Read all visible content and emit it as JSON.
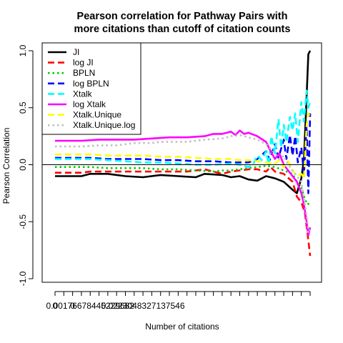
{
  "chart_data": {
    "type": "line",
    "title_lines": [
      "Pearson correlation for Pathway Pairs with",
      "more citations than cutoff of citation counts"
    ],
    "xlabel": "Number of citations",
    "ylabel": "Pearson Correlation",
    "ylim": [
      -1.0,
      1.0
    ],
    "y_ticks": [
      -1.0,
      -0.5,
      0.0,
      0.5,
      1.0
    ],
    "y_tick_labels": [
      "-1.0",
      "-0.5",
      "0.0",
      "0.5",
      "1.0"
    ],
    "x_tick_count": 30,
    "x_tick_labels": [
      {
        "tick": 0,
        "label": "0"
      },
      {
        "tick": 2,
        "label": "0"
      },
      {
        "tick": 4,
        "label": "0.00176678445229682"
      },
      {
        "tick": 10,
        "label": "0.0223048327137546"
      }
    ],
    "reference_line_y": 0,
    "legend_position": "top-left",
    "series": [
      {
        "name": "JI",
        "color": "#000000",
        "dash": "solid",
        "points": [
          [
            0,
            -0.1
          ],
          [
            3,
            -0.1
          ],
          [
            4,
            -0.08
          ],
          [
            6,
            -0.08
          ],
          [
            8,
            -0.1
          ],
          [
            10,
            -0.11
          ],
          [
            12,
            -0.09
          ],
          [
            14,
            -0.1
          ],
          [
            16,
            -0.11
          ],
          [
            17,
            -0.08
          ],
          [
            19,
            -0.09
          ],
          [
            20,
            -0.11
          ],
          [
            21,
            -0.1
          ],
          [
            22,
            -0.13
          ],
          [
            23,
            -0.14
          ],
          [
            24,
            -0.1
          ],
          [
            25,
            -0.12
          ],
          [
            26,
            -0.15
          ],
          [
            27,
            -0.22
          ],
          [
            27.5,
            -0.25
          ],
          [
            28,
            -0.12
          ],
          [
            28.3,
            0.05
          ],
          [
            28.6,
            0.6
          ],
          [
            28.8,
            0.97
          ],
          [
            29,
            1.0
          ]
        ]
      },
      {
        "name": "log JI",
        "color": "#ff0000",
        "dash": "longdash",
        "points": [
          [
            0,
            -0.07
          ],
          [
            3,
            -0.07
          ],
          [
            4,
            -0.06
          ],
          [
            8,
            -0.06
          ],
          [
            12,
            -0.06
          ],
          [
            15,
            -0.06
          ],
          [
            17,
            -0.04
          ],
          [
            18,
            -0.06
          ],
          [
            19,
            -0.08
          ],
          [
            20,
            -0.06
          ],
          [
            21,
            -0.05
          ],
          [
            22,
            -0.04
          ],
          [
            23,
            -0.04
          ],
          [
            24,
            -0.06
          ],
          [
            24.5,
            -0.02
          ],
          [
            25,
            -0.06
          ],
          [
            26,
            -0.08
          ],
          [
            27,
            -0.15
          ],
          [
            27.5,
            -0.28
          ],
          [
            28,
            -0.33
          ],
          [
            28.4,
            -0.42
          ],
          [
            28.7,
            -0.6
          ],
          [
            29,
            -0.8
          ]
        ]
      },
      {
        "name": "BPLN",
        "color": "#00cd00",
        "dash": "dotted",
        "points": [
          [
            0,
            -0.02
          ],
          [
            4,
            -0.02
          ],
          [
            6,
            -0.03
          ],
          [
            8,
            -0.03
          ],
          [
            10,
            -0.03
          ],
          [
            12,
            -0.04
          ],
          [
            14,
            -0.04
          ],
          [
            16,
            -0.05
          ],
          [
            18,
            -0.06
          ],
          [
            19,
            -0.05
          ],
          [
            20,
            -0.05
          ],
          [
            21,
            -0.04
          ],
          [
            22,
            -0.03
          ],
          [
            23,
            -0.02
          ],
          [
            24,
            -0.01
          ],
          [
            25,
            -0.02
          ],
          [
            26,
            -0.05
          ],
          [
            27,
            -0.08
          ],
          [
            27.5,
            -0.15
          ],
          [
            28,
            -0.2
          ],
          [
            28.4,
            -0.3
          ],
          [
            28.7,
            -0.35
          ],
          [
            29,
            -0.33
          ]
        ]
      },
      {
        "name": "log BPLN",
        "color": "#0000ff",
        "dash": "longdash",
        "points": [
          [
            0,
            0.06
          ],
          [
            4,
            0.06
          ],
          [
            6,
            0.05
          ],
          [
            8,
            0.05
          ],
          [
            10,
            0.05
          ],
          [
            12,
            0.04
          ],
          [
            14,
            0.04
          ],
          [
            16,
            0.03
          ],
          [
            18,
            0.03
          ],
          [
            20,
            0.02
          ],
          [
            22,
            0.02
          ],
          [
            23,
            0.05
          ],
          [
            24,
            0.12
          ],
          [
            24.4,
            0.04
          ],
          [
            25,
            0.18
          ],
          [
            25.4,
            0.06
          ],
          [
            26,
            0.22
          ],
          [
            26.3,
            0.05
          ],
          [
            26.7,
            0.26
          ],
          [
            27,
            0.08
          ],
          [
            27.3,
            0.25
          ],
          [
            27.6,
            0.02
          ],
          [
            28,
            0.15
          ],
          [
            28.3,
            -0.08
          ],
          [
            28.6,
            0.35
          ],
          [
            28.8,
            -0.25
          ],
          [
            29,
            0.45
          ]
        ]
      },
      {
        "name": "Xtalk",
        "color": "#00ffff",
        "dash": "longdash",
        "points": [
          [
            0,
            0.05
          ],
          [
            4,
            0.05
          ],
          [
            8,
            0.03
          ],
          [
            10,
            0.02
          ],
          [
            12,
            0.02
          ],
          [
            14,
            0.01
          ],
          [
            16,
            0.0
          ],
          [
            18,
            0.0
          ],
          [
            20,
            0.01
          ],
          [
            21,
            0.0
          ],
          [
            22,
            -0.02
          ],
          [
            22.5,
            0.0
          ],
          [
            23,
            0.08
          ],
          [
            23.5,
            0.04
          ],
          [
            24,
            0.12
          ],
          [
            24.3,
            0.0
          ],
          [
            24.6,
            0.25
          ],
          [
            25,
            0.1
          ],
          [
            25.4,
            0.4
          ],
          [
            25.7,
            0.15
          ],
          [
            26,
            0.35
          ],
          [
            26.3,
            0.2
          ],
          [
            26.7,
            0.42
          ],
          [
            27,
            0.3
          ],
          [
            27.3,
            0.45
          ],
          [
            27.6,
            0.2
          ],
          [
            28,
            0.55
          ],
          [
            28.3,
            0.38
          ],
          [
            28.6,
            0.65
          ],
          [
            28.8,
            0.5
          ],
          [
            29,
            0.55
          ]
        ]
      },
      {
        "name": "log Xtalk",
        "color": "#ff00ff",
        "dash": "solid",
        "points": [
          [
            0,
            0.21
          ],
          [
            3,
            0.21
          ],
          [
            5,
            0.22
          ],
          [
            7,
            0.22
          ],
          [
            9,
            0.22
          ],
          [
            11,
            0.23
          ],
          [
            13,
            0.24
          ],
          [
            15,
            0.24
          ],
          [
            17,
            0.25
          ],
          [
            18,
            0.27
          ],
          [
            19,
            0.27
          ],
          [
            20,
            0.29
          ],
          [
            20.5,
            0.26
          ],
          [
            21,
            0.3
          ],
          [
            21.5,
            0.27
          ],
          [
            22,
            0.28
          ],
          [
            23,
            0.25
          ],
          [
            24,
            0.2
          ],
          [
            24.5,
            0.12
          ],
          [
            25,
            0.05
          ],
          [
            25.5,
            0.1
          ],
          [
            26,
            0.0
          ],
          [
            26.5,
            -0.05
          ],
          [
            27,
            -0.1
          ],
          [
            27.5,
            -0.15
          ],
          [
            28,
            -0.25
          ],
          [
            28.3,
            -0.35
          ],
          [
            28.6,
            -0.5
          ],
          [
            28.8,
            -0.62
          ],
          [
            29,
            -0.55
          ]
        ]
      },
      {
        "name": "Xtalk.Unique",
        "color": "#ffff00",
        "dash": "longdash",
        "points": [
          [
            0,
            0.09
          ],
          [
            4,
            0.09
          ],
          [
            6,
            0.08
          ],
          [
            8,
            0.08
          ],
          [
            10,
            0.08
          ],
          [
            12,
            0.07
          ],
          [
            14,
            0.07
          ],
          [
            16,
            0.06
          ],
          [
            18,
            0.05
          ],
          [
            20,
            0.05
          ],
          [
            21,
            0.04
          ],
          [
            22,
            0.04
          ],
          [
            23,
            0.03
          ],
          [
            24,
            0.02
          ],
          [
            25,
            0.01
          ],
          [
            25.5,
            0.04
          ],
          [
            26,
            -0.02
          ],
          [
            26.5,
            0.03
          ],
          [
            27,
            -0.05
          ],
          [
            27.5,
            -0.1
          ],
          [
            28,
            -0.08
          ],
          [
            28.3,
            -0.12
          ],
          [
            28.6,
            0.35
          ],
          [
            28.8,
            0.45
          ],
          [
            29,
            0.42
          ]
        ]
      },
      {
        "name": "Xtalk.Unique.log",
        "color": "#bebebe",
        "dash": "dotted",
        "points": [
          [
            0,
            0.16
          ],
          [
            3,
            0.16
          ],
          [
            5,
            0.17
          ],
          [
            7,
            0.17
          ],
          [
            9,
            0.19
          ],
          [
            11,
            0.19
          ],
          [
            12,
            0.2
          ],
          [
            13,
            0.2
          ],
          [
            15,
            0.2
          ],
          [
            17,
            0.22
          ],
          [
            19,
            0.23
          ],
          [
            20,
            0.25
          ],
          [
            21,
            0.26
          ],
          [
            22,
            0.24
          ],
          [
            23,
            0.22
          ],
          [
            24,
            0.18
          ],
          [
            25,
            0.1
          ],
          [
            25.5,
            0.05
          ],
          [
            26,
            0.08
          ],
          [
            26.5,
            0.0
          ],
          [
            27,
            -0.05
          ],
          [
            27.5,
            -0.1
          ],
          [
            28,
            -0.15
          ],
          [
            28.3,
            -0.3
          ],
          [
            28.6,
            -0.45
          ],
          [
            28.8,
            -0.6
          ],
          [
            29,
            -0.57
          ]
        ]
      }
    ]
  }
}
